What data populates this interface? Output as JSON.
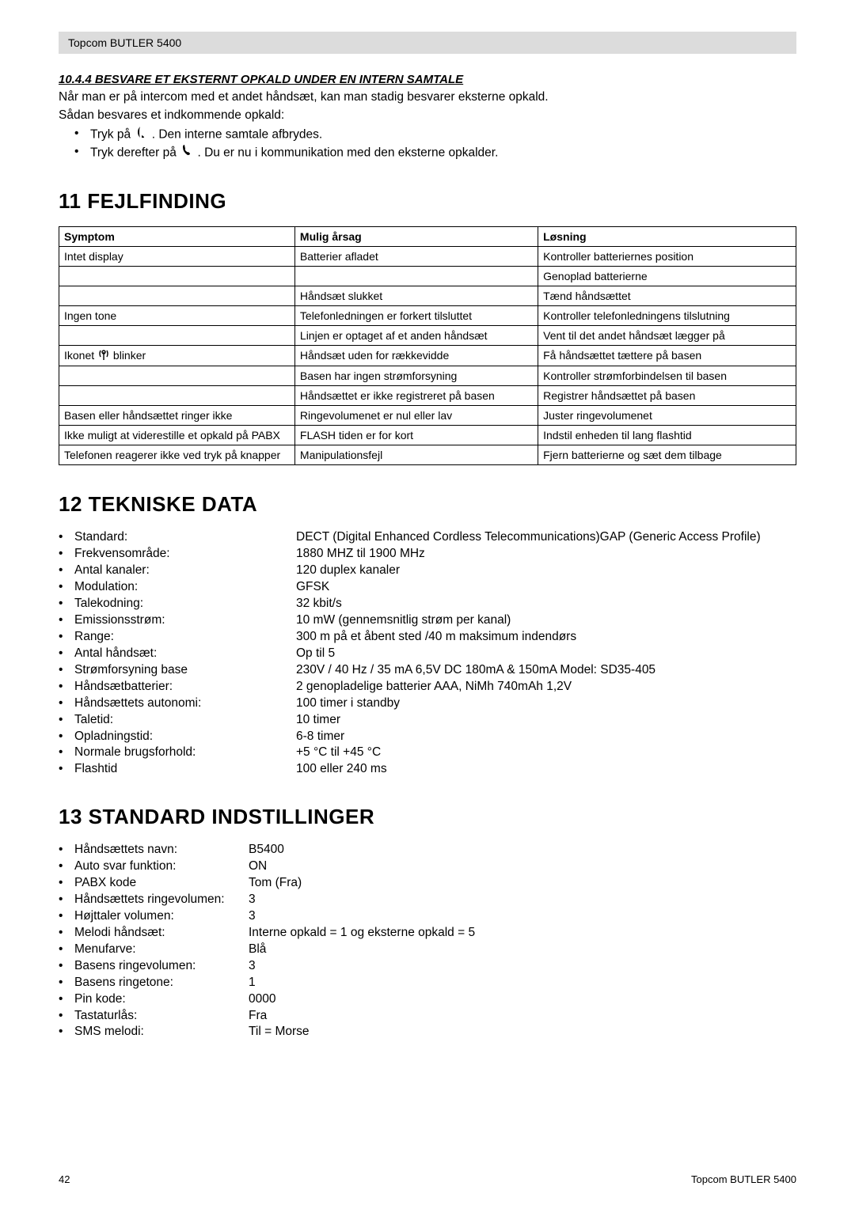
{
  "header": {
    "title": "Topcom BUTLER 5400"
  },
  "section_10_4_4": {
    "heading": "10.4.4 BESVARE ET EKSTERNT OPKALD UNDER EN INTERN SAMTALE",
    "line1": "Når man er på intercom med et andet håndsæt, kan man stadig besvarer eksterne opkald.",
    "line2": "Sådan besvares et indkommende opkald:",
    "bullet1_pre": "Tryk på ",
    "bullet1_post": " . Den interne samtale afbrydes.",
    "bullet2_pre": "Tryk derefter på ",
    "bullet2_post": " . Du er nu i kommunikation med den eksterne opkalder."
  },
  "section_11": {
    "heading": "11  FEJLFINDING",
    "columns": [
      "Symptom",
      "Mulig årsag",
      "Løsning"
    ],
    "rows": [
      [
        "Intet display",
        "Batterier afladet",
        "Kontroller batteriernes position"
      ],
      [
        "",
        "",
        "Genoplad batterierne"
      ],
      [
        "",
        "Håndsæt slukket",
        "Tænd håndsættet"
      ],
      [
        "Ingen tone",
        "Telefonledningen er forkert tilsluttet",
        "Kontroller telefonledningens tilslutning"
      ],
      [
        "",
        "Linjen er optaget af et anden håndsæt",
        "Vent til det andet håndsæt lægger på"
      ],
      [
        "__ICON__",
        "Håndsæt uden for rækkevidde",
        "Få håndsættet tættere på basen"
      ],
      [
        "",
        "Basen har ingen strømforsyning",
        "Kontroller strømforbindelsen til basen"
      ],
      [
        "",
        "Håndsættet er ikke registreret på basen",
        "Registrer håndsættet på basen"
      ],
      [
        "Basen eller håndsættet ringer ikke",
        "Ringevolumenet er nul eller lav",
        "Juster ringevolumenet"
      ],
      [
        "Ikke muligt at viderestille et opkald på PABX",
        "FLASH tiden er for kort",
        "Indstil enheden til lang flashtid"
      ],
      [
        "Telefonen reagerer ikke ved tryk på knapper",
        "Manipulationsfejl",
        "Fjern batterierne og sæt dem tilbage"
      ]
    ],
    "icon_row_text_pre": "Ikonet ",
    "icon_row_text_post": " blinker"
  },
  "section_12": {
    "heading": "12  TEKNISKE DATA",
    "items": [
      {
        "label": "Standard:",
        "value": "DECT (Digital Enhanced Cordless Telecommunications)GAP (Generic Access Profile)"
      },
      {
        "label": "Frekvensområde:",
        "value": "1880 MHZ til 1900 MHz"
      },
      {
        "label": "Antal kanaler:",
        "value": "120 duplex kanaler"
      },
      {
        "label": "Modulation:",
        "value": "GFSK"
      },
      {
        "label": "Talekodning:",
        "value": "32 kbit/s"
      },
      {
        "label": "Emissionsstrøm:",
        "value": "10 mW (gennemsnitlig strøm per kanal)"
      },
      {
        "label": "Range:",
        "value": "300 m på et åbent sted /40 m maksimum indendørs"
      },
      {
        "label": "Antal håndsæt:",
        "value": "Op til 5"
      },
      {
        "label": "Strømforsyning base",
        "value": "230V / 40 Hz / 35 mA 6,5V DC 180mA & 150mA Model: SD35-405"
      },
      {
        "label": "Håndsætbatterier:",
        "value": "2 genopladelige batterier AAA, NiMh 740mAh 1,2V"
      },
      {
        "label": "Håndsættets autonomi:",
        "value": "100 timer i standby"
      },
      {
        "label": "Taletid:",
        "value": "10 timer"
      },
      {
        "label": "Opladningstid:",
        "value": "6-8 timer"
      },
      {
        "label": "Normale brugsforhold:",
        "value": "+5 °C til +45 °C"
      },
      {
        "label": "Flashtid",
        "value": "100 eller 240 ms"
      }
    ]
  },
  "section_13": {
    "heading": "13  STANDARD INDSTILLINGER",
    "items": [
      {
        "label": "Håndsættets navn:",
        "value": "B5400"
      },
      {
        "label": "Auto svar funktion:",
        "value": "ON"
      },
      {
        "label": "PABX kode",
        "value": "Tom (Fra)"
      },
      {
        "label": "Håndsættets ringevolumen:",
        "value": "3"
      },
      {
        "label": "Højttaler volumen:",
        "value": "3"
      },
      {
        "label": "Melodi håndsæt:",
        "value": "Interne opkald = 1 og eksterne opkald = 5"
      },
      {
        "label": "Menufarve:",
        "value": "Blå"
      },
      {
        "label": "Basens ringevolumen:",
        "value": "3"
      },
      {
        "label": "Basens ringetone:",
        "value": "1"
      },
      {
        "label": "Pin kode:",
        "value": "0000"
      },
      {
        "label": "Tastaturlås:",
        "value": "Fra"
      },
      {
        "label": "SMS melodi:",
        "value": "Til = Morse"
      }
    ]
  },
  "footer": {
    "page": "42",
    "product": "Topcom BUTLER 5400"
  }
}
